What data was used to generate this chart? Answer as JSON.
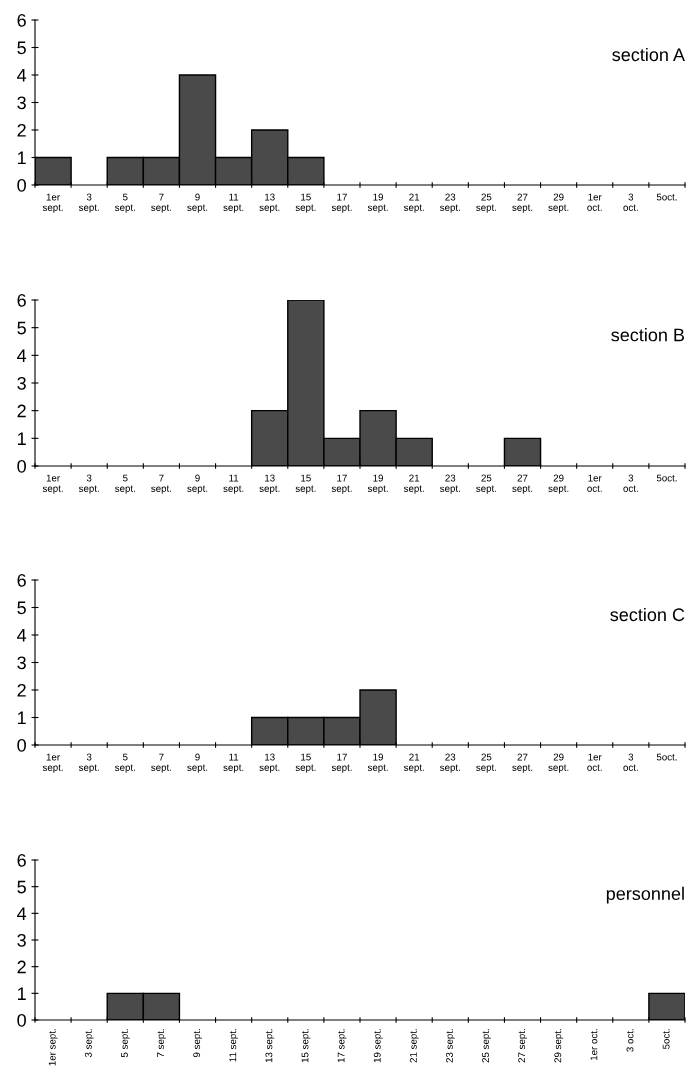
{
  "chart_data": [
    {
      "type": "bar",
      "title": "section A",
      "categories": [
        "1er\nsept.",
        "3\nsept.",
        "5\nsept.",
        "7\nsept.",
        "9\nsept.",
        "11\nsept.",
        "13\nsept.",
        "15\nsept.",
        "17\nsept.",
        "19\nsept.",
        "21\nsept.",
        "23\nsept.",
        "25\nsept.",
        "27\nsept.",
        "29\nsept.",
        "1er\noct.",
        "3\noct.",
        "5oct."
      ],
      "values": [
        1,
        0,
        1,
        1,
        4,
        1,
        2,
        1,
        0,
        0,
        0,
        0,
        0,
        0,
        0,
        0,
        0,
        0
      ],
      "color": "#4a4a4a",
      "ylim": [
        0,
        6
      ],
      "yticks": [
        0,
        1,
        2,
        3,
        4,
        5,
        6
      ],
      "grid": false,
      "legend": false
    },
    {
      "type": "bar",
      "title": "section B",
      "categories": [
        "1er\nsept.",
        "3\nsept.",
        "5\nsept.",
        "7\nsept.",
        "9\nsept.",
        "11\nsept.",
        "13\nsept.",
        "15\nsept.",
        "17\nsept.",
        "19\nsept.",
        "21\nsept.",
        "23\nsept.",
        "25\nsept.",
        "27\nsept.",
        "29\nsept.",
        "1er\noct.",
        "3\noct.",
        "5oct."
      ],
      "values": [
        0,
        0,
        0,
        0,
        0,
        0,
        2,
        6,
        1,
        2,
        1,
        0,
        0,
        1,
        0,
        0,
        0,
        0
      ],
      "color": "#4a4a4a",
      "ylim": [
        0,
        6
      ],
      "yticks": [
        0,
        1,
        2,
        3,
        4,
        5,
        6
      ],
      "grid": false,
      "legend": false
    },
    {
      "type": "bar",
      "title": "section C",
      "categories": [
        "1er\nsept.",
        "3\nsept.",
        "5\nsept.",
        "7\nsept.",
        "9\nsept.",
        "11\nsept.",
        "13\nsept.",
        "15\nsept.",
        "17\nsept.",
        "19\nsept.",
        "21\nsept.",
        "23\nsept.",
        "25\nsept.",
        "27\nsept.",
        "29\nsept.",
        "1er\noct.",
        "3\noct.",
        "5oct."
      ],
      "values": [
        0,
        0,
        0,
        0,
        0,
        0,
        1,
        1,
        1,
        2,
        0,
        0,
        0,
        0,
        0,
        0,
        0,
        0
      ],
      "color": "#4a4a4a",
      "ylim": [
        0,
        6
      ],
      "yticks": [
        0,
        1,
        2,
        3,
        4,
        5,
        6
      ],
      "grid": false,
      "legend": false
    },
    {
      "type": "bar",
      "title": "personnel",
      "categories": [
        "1er sept.",
        "3 sept.",
        "5 sept.",
        "7 sept.",
        "9 sept.",
        "11 sept.",
        "13 sept.",
        "15 sept.",
        "17 sept.",
        "19 sept.",
        "21 sept.",
        "23 sept.",
        "25 sept.",
        "27 sept.",
        "29 sept.",
        "1er oct.",
        "3 oct.",
        "5oct."
      ],
      "values": [
        0,
        0,
        1,
        1,
        0,
        0,
        0,
        0,
        0,
        0,
        0,
        0,
        0,
        0,
        0,
        0,
        0,
        1
      ],
      "color": "#4a4a4a",
      "ylim": [
        0,
        6
      ],
      "yticks": [
        0,
        1,
        2,
        3,
        4,
        5,
        6
      ],
      "grid": false,
      "legend": false
    }
  ]
}
